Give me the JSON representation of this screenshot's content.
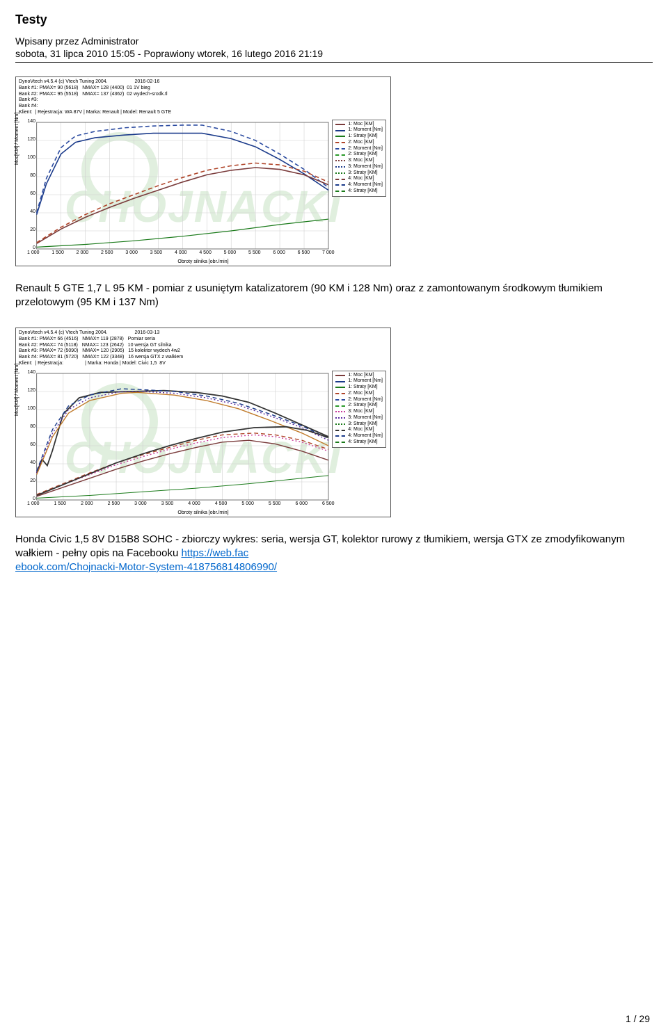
{
  "document": {
    "title": "Testy",
    "byline": "Wpisany przez Administrator",
    "dateline": "sobota, 31 lipca 2010 15:05 - Poprawiony wtorek, 16 lutego 2016 21:19",
    "page_number": "1 / 29"
  },
  "chart1": {
    "type": "line",
    "header_lines": [
      "DynoVtech v4.5.4 (c) Vtech Tuning 2004.                    2016-02-16",
      "Bank #1: PMAX= 90 (5618)   NMAX= 128 (4400)  01 1V bieg",
      "Bank #2: PMAX= 95 (5518)   NMAX= 137 (4362)  02 wydech-srodk.tl",
      "Bank #3:",
      "Bank #4:",
      "Klient:  | Rejestracja: WA 87V | Marka: Renault | Model: Renault 5 GTE"
    ],
    "x_axis": {
      "title": "Obroty silnika [obr./min]",
      "min": 1000,
      "max": 7000,
      "step": 500,
      "ticks": [
        "1 000",
        "1 500",
        "2 000",
        "2 500",
        "3 000",
        "3 500",
        "4 000",
        "4 500",
        "5 000",
        "5 500",
        "6 000",
        "6 500",
        "7 000"
      ]
    },
    "y_axis": {
      "title": "Moc[KM] / Moment [Nm]",
      "min": 0,
      "max": 140,
      "step": 20,
      "ticks": [
        "0",
        "20",
        "40",
        "60",
        "80",
        "100",
        "120",
        "140"
      ]
    },
    "grid_color": "#d0d0d0",
    "background_color": "#ffffff",
    "legend": [
      {
        "label": "1: Moc [KM]",
        "color": "#7a3b3b",
        "dash": "solid"
      },
      {
        "label": "1: Moment [Nm]",
        "color": "#1a3a8a",
        "dash": "solid"
      },
      {
        "label": "1: Straty [KM]",
        "color": "#1a7a1a",
        "dash": "solid"
      },
      {
        "label": "2: Moc [KM]",
        "color": "#b0452a",
        "dash": "dashed"
      },
      {
        "label": "2: Moment [Nm]",
        "color": "#2a4aa0",
        "dash": "dashed"
      },
      {
        "label": "2: Straty [KM]",
        "color": "#2a9a2a",
        "dash": "dashed"
      },
      {
        "label": "3: Moc [KM]",
        "color": "#7a3b3b",
        "dash": "dotted"
      },
      {
        "label": "3: Moment [Nm]",
        "color": "#1a3a8a",
        "dash": "dotted"
      },
      {
        "label": "3: Straty [KM]",
        "color": "#1a7a1a",
        "dash": "dotted"
      },
      {
        "label": "4: Moc [KM]",
        "color": "#7a3b3b",
        "dash": "dashdot"
      },
      {
        "label": "4: Moment [Nm]",
        "color": "#1a3a8a",
        "dash": "dashdot"
      },
      {
        "label": "4: Straty [KM]",
        "color": "#1a7a1a",
        "dash": "dashdot"
      }
    ],
    "series": [
      {
        "color": "#1a3a8a",
        "width": 1.6,
        "dash": "solid",
        "points": [
          [
            1000,
            38
          ],
          [
            1200,
            72
          ],
          [
            1500,
            105
          ],
          [
            1800,
            118
          ],
          [
            2200,
            123
          ],
          [
            2800,
            126
          ],
          [
            3400,
            128
          ],
          [
            4000,
            128
          ],
          [
            4400,
            128
          ],
          [
            5000,
            122
          ],
          [
            5500,
            113
          ],
          [
            6000,
            99
          ],
          [
            6500,
            83
          ],
          [
            7000,
            65
          ]
        ]
      },
      {
        "color": "#2a4aa0",
        "width": 1.6,
        "dash": "dashed",
        "points": [
          [
            1000,
            40
          ],
          [
            1200,
            78
          ],
          [
            1500,
            112
          ],
          [
            1800,
            125
          ],
          [
            2200,
            130
          ],
          [
            2800,
            134
          ],
          [
            3400,
            136
          ],
          [
            4000,
            137
          ],
          [
            4400,
            137
          ],
          [
            5000,
            130
          ],
          [
            5500,
            120
          ],
          [
            6000,
            105
          ],
          [
            6500,
            88
          ],
          [
            7000,
            68
          ]
        ]
      },
      {
        "color": "#7a3b3b",
        "width": 1.6,
        "dash": "solid",
        "points": [
          [
            1000,
            6
          ],
          [
            1500,
            22
          ],
          [
            2000,
            35
          ],
          [
            2500,
            46
          ],
          [
            3000,
            56
          ],
          [
            3500,
            65
          ],
          [
            4000,
            74
          ],
          [
            4500,
            82
          ],
          [
            5000,
            87
          ],
          [
            5500,
            90
          ],
          [
            6000,
            88
          ],
          [
            6500,
            82
          ],
          [
            7000,
            71
          ]
        ]
      },
      {
        "color": "#b0452a",
        "width": 1.6,
        "dash": "dashed",
        "points": [
          [
            1000,
            7
          ],
          [
            1500,
            24
          ],
          [
            2000,
            38
          ],
          [
            2500,
            50
          ],
          [
            3000,
            60
          ],
          [
            3500,
            70
          ],
          [
            4000,
            79
          ],
          [
            4500,
            87
          ],
          [
            5000,
            92
          ],
          [
            5500,
            95
          ],
          [
            6000,
            93
          ],
          [
            6500,
            86
          ],
          [
            7000,
            74
          ]
        ]
      },
      {
        "color": "#1a7a1a",
        "width": 1.2,
        "dash": "solid",
        "points": [
          [
            1000,
            2
          ],
          [
            2000,
            5
          ],
          [
            3000,
            9
          ],
          [
            4000,
            14
          ],
          [
            5000,
            20
          ],
          [
            6000,
            27
          ],
          [
            7000,
            33
          ]
        ]
      }
    ]
  },
  "caption1": {
    "text_a": "Renault 5 GTE 1,7 L 95 KM - pomiar z usuniętym katalizatorem (90 KM i 128 Nm) oraz z zamontowanym środkowym tłumikiem przelotowym (95 KM i 137 Nm)"
  },
  "chart2": {
    "type": "line",
    "header_lines": [
      "DynoVtech v4.5.4 (c) Vtech Tuning 2004.                    2016-03-13",
      "Bank #1: PMAX= 66 (4516)   NMAX= 119 (2878)   Pomiar seria",
      "Bank #2: PMAX= 74 (5118)   NMAX= 123 (2642)   10 wersja GT silnika",
      "Bank #3: PMAX= 72 (5090)   NMAX= 120 (2905)   15 kolektor wydech 4w2",
      "Bank #4: PMAX= 81 (5720)   NMAX= 122 (3348)   16 wersja GTX z walkiem",
      "Klient:  | Rejestracja:                | Marka: Honda | Model: Civic 1,5  8V"
    ],
    "x_axis": {
      "title": "Obroty silnika [obr./min]",
      "min": 1000,
      "max": 6500,
      "step": 500,
      "ticks": [
        "1 000",
        "1 500",
        "2 000",
        "2 500",
        "3 000",
        "3 500",
        "4 000",
        "4 500",
        "5 000",
        "5 500",
        "6 000",
        "6 500"
      ]
    },
    "y_axis": {
      "title": "Moc[KM] / Moment [Nm]",
      "min": 0,
      "max": 140,
      "step": 20,
      "ticks": [
        "0",
        "20",
        "40",
        "60",
        "80",
        "100",
        "120",
        "140"
      ]
    },
    "grid_color": "#d0d0d0",
    "background_color": "#ffffff",
    "legend": [
      {
        "label": "1: Moc [KM]",
        "color": "#7a3b3b",
        "dash": "solid"
      },
      {
        "label": "1: Moment [Nm]",
        "color": "#1a3a8a",
        "dash": "solid"
      },
      {
        "label": "1: Straty [KM]",
        "color": "#1a7a1a",
        "dash": "solid"
      },
      {
        "label": "2: Moc [KM]",
        "color": "#b0452a",
        "dash": "dashed"
      },
      {
        "label": "2: Moment [Nm]",
        "color": "#2a4aa0",
        "dash": "dashed"
      },
      {
        "label": "2: Straty [KM]",
        "color": "#2a9a2a",
        "dash": "dashed"
      },
      {
        "label": "3: Moc [KM]",
        "color": "#c83a9a",
        "dash": "dotted"
      },
      {
        "label": "3: Moment [Nm]",
        "color": "#5a2aa0",
        "dash": "dotted"
      },
      {
        "label": "3: Straty [KM]",
        "color": "#1a7a1a",
        "dash": "dotted"
      },
      {
        "label": "4: Moc [KM]",
        "color": "#333333",
        "dash": "dashdot"
      },
      {
        "label": "4: Moment [Nm]",
        "color": "#1a3a8a",
        "dash": "dashdot"
      },
      {
        "label": "4: Straty [KM]",
        "color": "#1a7a1a",
        "dash": "dashdot"
      }
    ],
    "series": [
      {
        "color": "#333333",
        "width": 1.8,
        "dash": "solid",
        "points": [
          [
            1000,
            30
          ],
          [
            1100,
            45
          ],
          [
            1200,
            38
          ],
          [
            1300,
            55
          ],
          [
            1500,
            95
          ],
          [
            1800,
            113
          ],
          [
            2200,
            119
          ],
          [
            2800,
            120
          ],
          [
            3400,
            121
          ],
          [
            4000,
            119
          ],
          [
            4500,
            115
          ],
          [
            5000,
            108
          ],
          [
            5500,
            96
          ],
          [
            6000,
            83
          ],
          [
            6500,
            70
          ]
        ]
      },
      {
        "color": "#1a3a8a",
        "width": 1.4,
        "dash": "dashed",
        "points": [
          [
            1000,
            32
          ],
          [
            1300,
            78
          ],
          [
            1600,
            104
          ],
          [
            2000,
            116
          ],
          [
            2600,
            123
          ],
          [
            3000,
            122
          ],
          [
            3600,
            120
          ],
          [
            4200,
            115
          ],
          [
            4800,
            107
          ],
          [
            5400,
            95
          ],
          [
            6000,
            82
          ],
          [
            6500,
            68
          ]
        ]
      },
      {
        "color": "#5a2aa0",
        "width": 1.4,
        "dash": "dotted",
        "points": [
          [
            1000,
            30
          ],
          [
            1300,
            74
          ],
          [
            1600,
            100
          ],
          [
            2000,
            113
          ],
          [
            2600,
            120
          ],
          [
            3000,
            120
          ],
          [
            3600,
            118
          ],
          [
            4200,
            113
          ],
          [
            4800,
            105
          ],
          [
            5400,
            93
          ],
          [
            6000,
            80
          ],
          [
            6500,
            66
          ]
        ]
      },
      {
        "color": "#c07a2a",
        "width": 1.4,
        "dash": "solid",
        "points": [
          [
            1000,
            28
          ],
          [
            1300,
            70
          ],
          [
            1600,
            96
          ],
          [
            2000,
            110
          ],
          [
            2600,
            118
          ],
          [
            2900,
            119
          ],
          [
            3600,
            116
          ],
          [
            4200,
            110
          ],
          [
            4800,
            101
          ],
          [
            5400,
            88
          ],
          [
            6000,
            74
          ],
          [
            6500,
            60
          ]
        ]
      },
      {
        "color": "#b0452a",
        "width": 1.4,
        "dash": "dashed",
        "points": [
          [
            1000,
            6
          ],
          [
            1500,
            18
          ],
          [
            2000,
            30
          ],
          [
            2500,
            41
          ],
          [
            3000,
            50
          ],
          [
            3500,
            58
          ],
          [
            4000,
            66
          ],
          [
            4500,
            72
          ],
          [
            5100,
            74
          ],
          [
            5500,
            72
          ],
          [
            6000,
            66
          ],
          [
            6500,
            56
          ]
        ]
      },
      {
        "color": "#c83a9a",
        "width": 1.4,
        "dash": "dotted",
        "points": [
          [
            1000,
            5
          ],
          [
            1500,
            17
          ],
          [
            2000,
            28
          ],
          [
            2500,
            39
          ],
          [
            3000,
            48
          ],
          [
            3500,
            56
          ],
          [
            4000,
            63
          ],
          [
            4500,
            69
          ],
          [
            5100,
            72
          ],
          [
            5500,
            70
          ],
          [
            6000,
            64
          ],
          [
            6500,
            54
          ]
        ]
      },
      {
        "color": "#333333",
        "width": 1.8,
        "dash": "solid",
        "points": [
          [
            1000,
            5
          ],
          [
            1500,
            17
          ],
          [
            2000,
            29
          ],
          [
            2500,
            41
          ],
          [
            3000,
            51
          ],
          [
            3500,
            60
          ],
          [
            4000,
            68
          ],
          [
            4500,
            75
          ],
          [
            5100,
            80
          ],
          [
            5700,
            81
          ],
          [
            6100,
            77
          ],
          [
            6500,
            69
          ]
        ]
      },
      {
        "color": "#7a3b3b",
        "width": 1.4,
        "dash": "solid",
        "points": [
          [
            1000,
            4
          ],
          [
            1500,
            14
          ],
          [
            2000,
            24
          ],
          [
            2500,
            34
          ],
          [
            3000,
            43
          ],
          [
            3500,
            51
          ],
          [
            4000,
            58
          ],
          [
            4500,
            64
          ],
          [
            5000,
            66
          ],
          [
            5500,
            62
          ],
          [
            6000,
            54
          ],
          [
            6500,
            44
          ]
        ]
      },
      {
        "color": "#1a7a1a",
        "width": 1.0,
        "dash": "solid",
        "points": [
          [
            1000,
            2
          ],
          [
            2000,
            5
          ],
          [
            3000,
            9
          ],
          [
            4000,
            13
          ],
          [
            5000,
            18
          ],
          [
            6000,
            24
          ],
          [
            6500,
            27
          ]
        ]
      }
    ]
  },
  "caption2": {
    "text_a": "Honda Civic 1,5 8V D15B8 SOHC - zbiorczy wykres: seria, wersja GT, kolektor rurowy z tłumikiem, wersja GTX ze zmodyfikowanym wałkiem - pełny opis na Facebooku  ",
    "link1_text": "https://web.fac",
    "link2_text": "ebook.com/Chojnacki-Motor-System-418756814806990/"
  }
}
